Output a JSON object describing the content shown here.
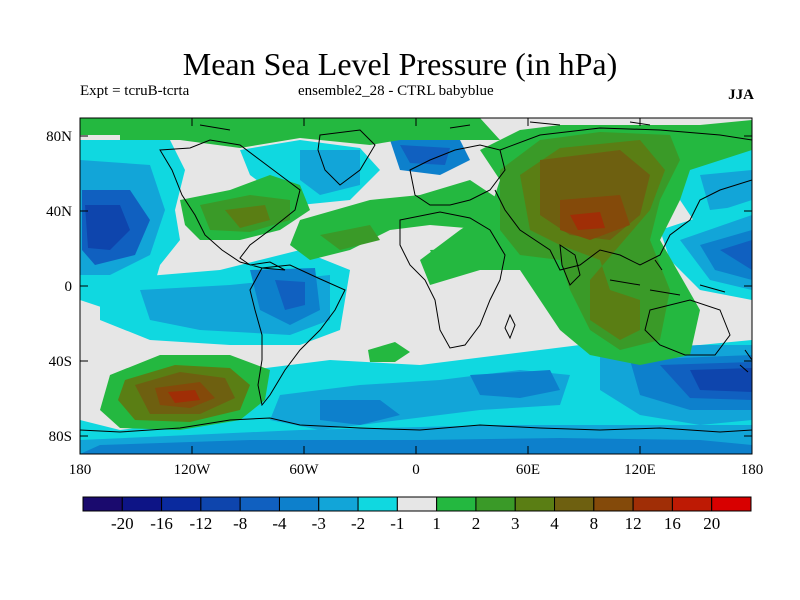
{
  "header": {
    "title": "Mean Sea Level Pressure (in hPa)",
    "subtitle_left": "Expt = tcruB-tcrta",
    "subtitle_center": "ensemble2_28 - CTRL babyblue",
    "subtitle_right": "JJA"
  },
  "map": {
    "lat_labels": [
      "80N",
      "40N",
      "0",
      "40S",
      "80S"
    ],
    "lon_labels": [
      "180",
      "120W",
      "60W",
      "0",
      "60E",
      "120E",
      "180"
    ],
    "background_color": "#e6e6e6",
    "coastline_color": "#000000"
  },
  "colorbar": {
    "colors": [
      "#1a0a6e",
      "#0d1486",
      "#0a2a9e",
      "#0e45ad",
      "#1060c0",
      "#0d80cc",
      "#12a5d8",
      "#10d8e0",
      "#e6e6e6",
      "#24b840",
      "#3a9a28",
      "#5a7e14",
      "#6e6010",
      "#844a0a",
      "#a02e06",
      "#be1a04",
      "#d80000"
    ],
    "labels": [
      "-20",
      "-16",
      "-12",
      "-8",
      "-4",
      "-3",
      "-2",
      "-1",
      "1",
      "2",
      "3",
      "4",
      "8",
      "12",
      "16",
      "20"
    ]
  }
}
